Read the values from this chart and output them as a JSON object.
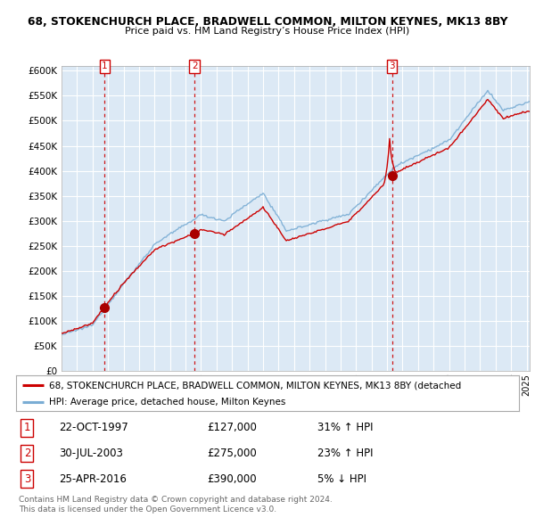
{
  "title1": "68, STOKENCHURCH PLACE, BRADWELL COMMON, MILTON KEYNES, MK13 8BY",
  "title2": "Price paid vs. HM Land Registry’s House Price Index (HPI)",
  "ylabel_ticks": [
    "£0",
    "£50K",
    "£100K",
    "£150K",
    "£200K",
    "£250K",
    "£300K",
    "£350K",
    "£400K",
    "£450K",
    "£500K",
    "£550K",
    "£600K"
  ],
  "ytick_values": [
    0,
    50000,
    100000,
    150000,
    200000,
    250000,
    300000,
    350000,
    400000,
    450000,
    500000,
    550000,
    600000
  ],
  "sale_t": [
    1997.789,
    2003.581,
    2016.315
  ],
  "sale_prices": [
    127000,
    275000,
    390000
  ],
  "sale_labels": [
    "1",
    "2",
    "3"
  ],
  "vline_color": "#cc0000",
  "sale_dot_color": "#aa0000",
  "legend_red_label": "68, STOKENCHURCH PLACE, BRADWELL COMMON, MILTON KEYNES, MK13 8BY (detached",
  "legend_blue_label": "HPI: Average price, detached house, Milton Keynes",
  "table_rows": [
    [
      "1",
      "22-OCT-1997",
      "£127,000",
      "31% ↑ HPI"
    ],
    [
      "2",
      "30-JUL-2003",
      "£275,000",
      "23% ↑ HPI"
    ],
    [
      "3",
      "25-APR-2016",
      "£390,000",
      "5% ↓ HPI"
    ]
  ],
  "footnote": "Contains HM Land Registry data © Crown copyright and database right 2024.\nThis data is licensed under the Open Government Licence v3.0.",
  "bg_color": "#ffffff",
  "plot_bg_color": "#dce9f5",
  "grid_color": "#ffffff",
  "red_line_color": "#cc0000",
  "blue_line_color": "#7aadd4",
  "xlim_left": 1995.0,
  "xlim_right": 2025.2,
  "ylim_top": 610000
}
